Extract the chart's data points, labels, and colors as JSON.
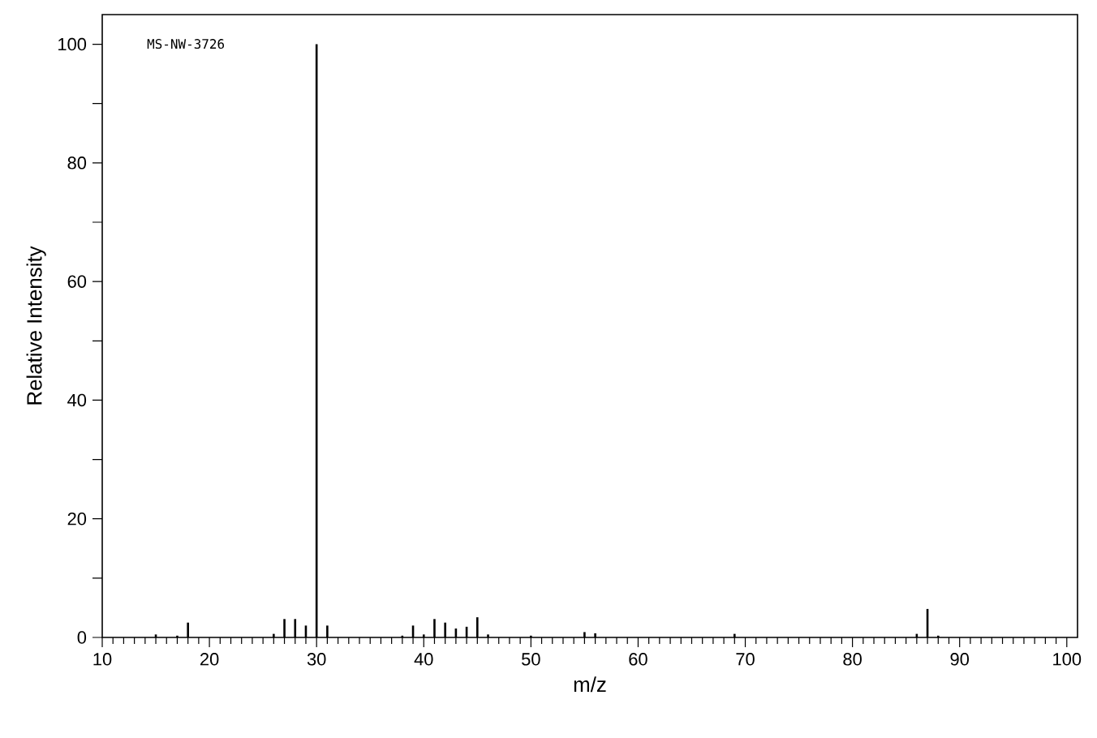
{
  "chart_data": {
    "type": "bar",
    "xlabel": "m/z",
    "ylabel": "Relative Intensity",
    "annotations": [
      "MS-NW-3726"
    ],
    "x": [
      15,
      17,
      18,
      26,
      27,
      28,
      29,
      30,
      31,
      38,
      39,
      40,
      41,
      42,
      43,
      44,
      45,
      46,
      50,
      55,
      56,
      69,
      86,
      87,
      88
    ],
    "values": [
      0.5,
      0.3,
      2.5,
      0.6,
      3.1,
      3.1,
      2.0,
      100,
      2.0,
      0.3,
      2.0,
      0.5,
      3.1,
      2.5,
      1.5,
      1.8,
      3.4,
      0.5,
      0.3,
      0.9,
      0.7,
      0.6,
      0.6,
      4.8,
      0.3
    ],
    "color": "#000000",
    "xlim": [
      10,
      101
    ],
    "ylim": [
      0,
      105
    ],
    "xticks": [
      10,
      20,
      30,
      40,
      50,
      60,
      70,
      80,
      90,
      100
    ],
    "yticks": [
      0,
      {
        "value": 10,
        "label": null
      },
      20,
      {
        "value": 30,
        "label": null
      },
      40,
      {
        "value": 50,
        "label": null
      },
      60,
      {
        "value": 70,
        "label": null
      },
      80,
      {
        "value": 90,
        "label": null
      },
      100
    ],
    "grid": false
  }
}
